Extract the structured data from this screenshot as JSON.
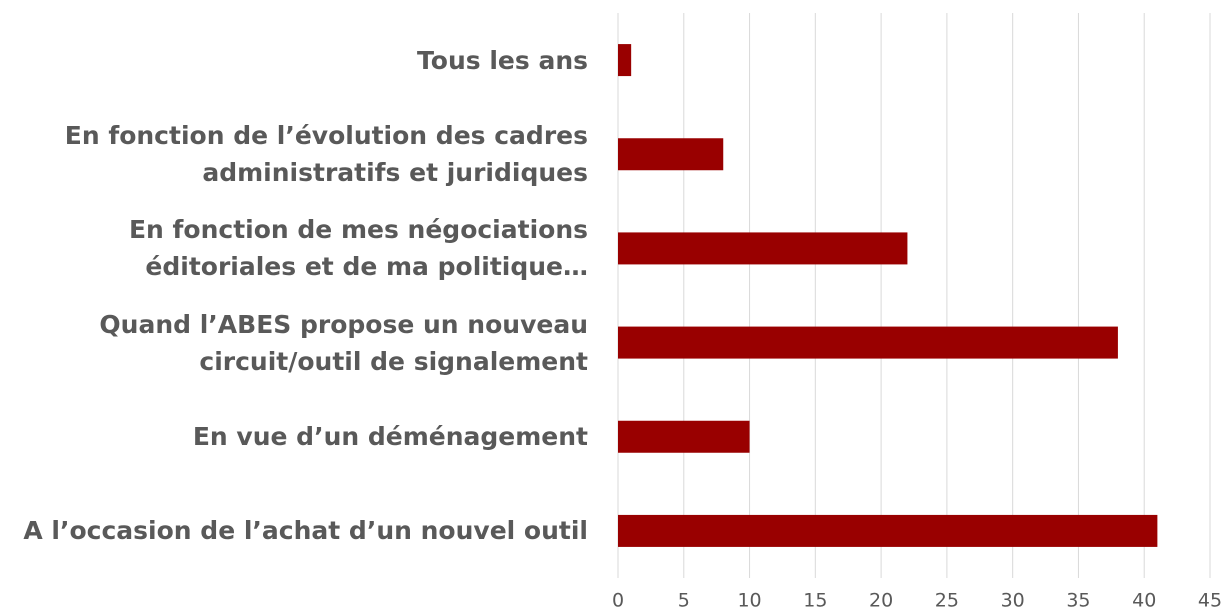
{
  "chart_data": {
    "type": "bar",
    "orientation": "horizontal",
    "categories": [
      "Tous les ans",
      "En fonction de l’évolution des cadres administratifs et juridiques",
      "En fonction de mes négociations éditoriales et de ma politique…",
      "Quand l’ABES propose un nouveau circuit/outil de signalement",
      "En vue d’un déménagement",
      "A l’occasion de l’achat d’un nouvel outil"
    ],
    "values": [
      1,
      8,
      22,
      38,
      10,
      41
    ],
    "color": "#990000",
    "xlim": [
      0,
      45
    ],
    "xticks": [
      0,
      5,
      10,
      15,
      20,
      25,
      30,
      35,
      40,
      45
    ],
    "grid": true
  }
}
